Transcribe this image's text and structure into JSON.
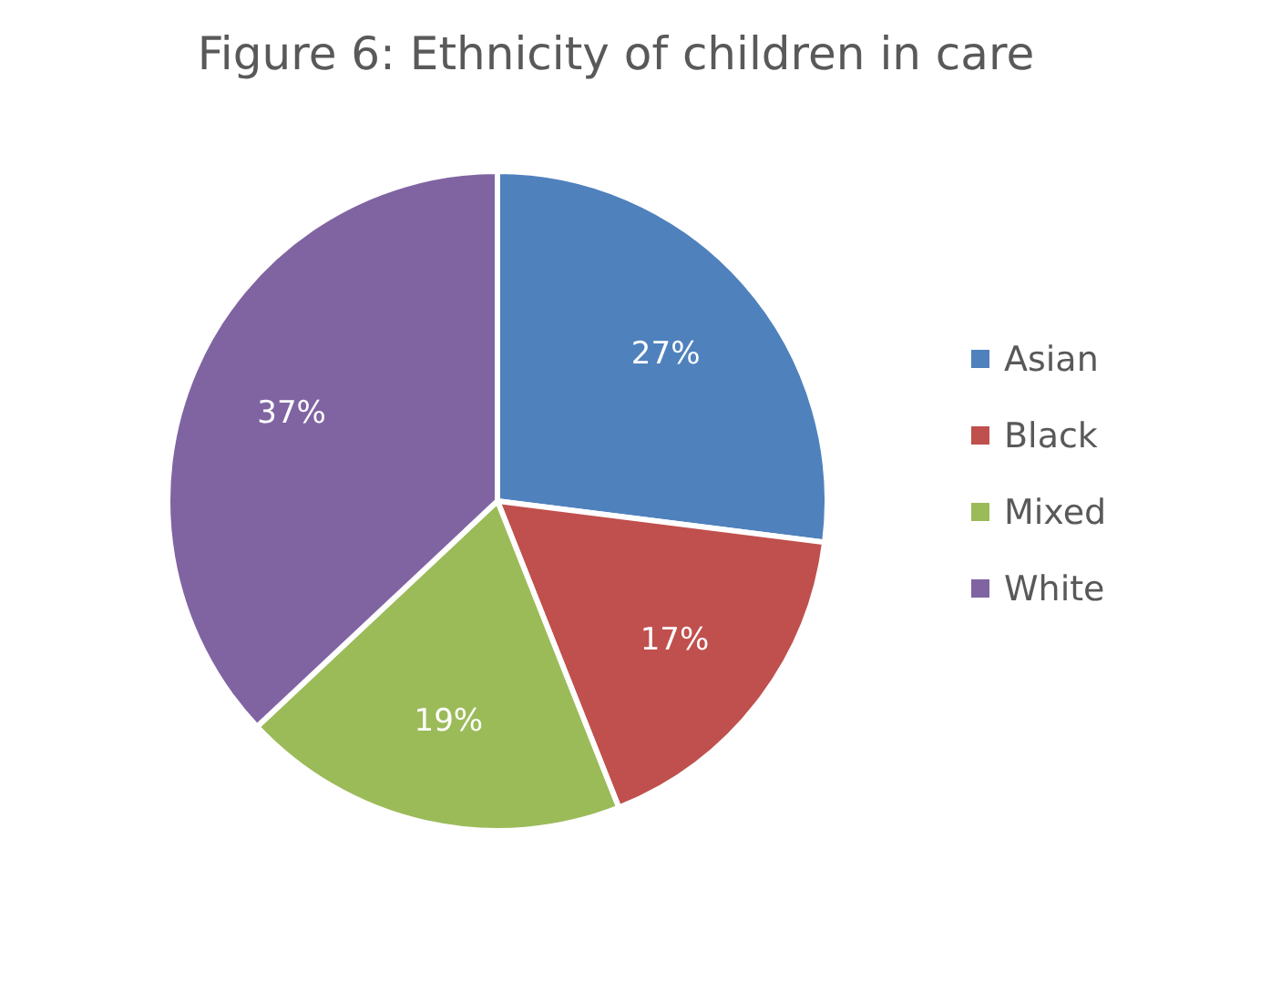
{
  "chart_data": {
    "type": "pie",
    "title": "Figure 6: Ethnicity of children in care",
    "categories": [
      "Asian",
      "Black",
      "Mixed",
      "White"
    ],
    "values": [
      27,
      17,
      19,
      37
    ],
    "colors": [
      "#4f81bd",
      "#c0504d",
      "#9bbb59",
      "#8064a2"
    ],
    "value_labels": [
      "27%",
      "17%",
      "19%",
      "37%"
    ],
    "legend": "right"
  }
}
